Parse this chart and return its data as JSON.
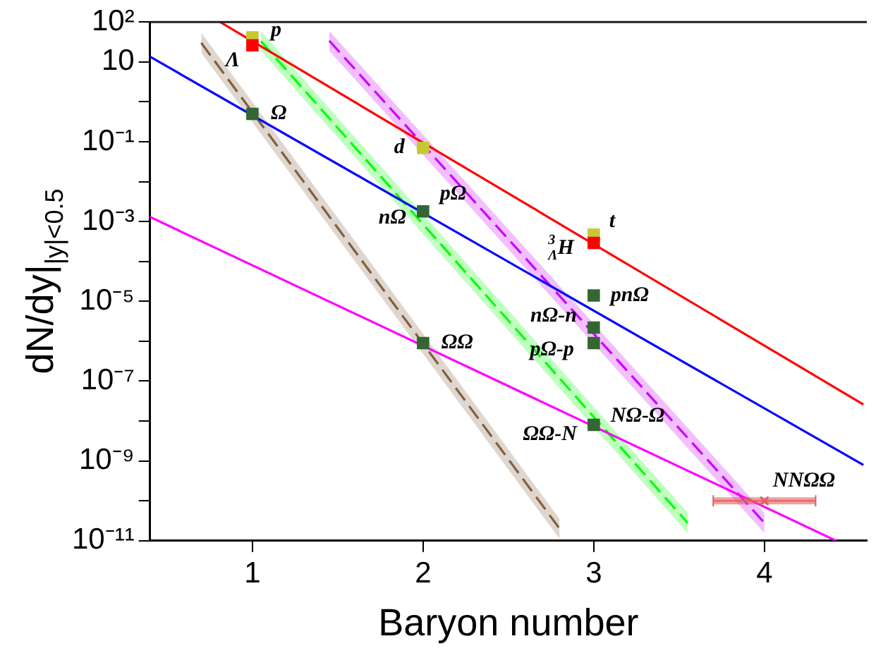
{
  "chart_data": {
    "type": "scatter",
    "xlabel": "Baryon number",
    "ylabel": "dN/dy|$_{|y|<0.5}$",
    "log": "y",
    "grid": false,
    "legend": false,
    "marker": "square",
    "xlim": [
      0.4,
      4.6
    ],
    "xticks": [
      1,
      2,
      3,
      4
    ],
    "ylim": [
      1e-11,
      100
    ],
    "yticks": [
      {
        "value": 100,
        "label": "10²"
      },
      {
        "value": 10,
        "label": "10"
      },
      {
        "value": 1,
        "label": null
      },
      {
        "value": 0.1,
        "label": "10⁻¹"
      },
      {
        "value": 0.01,
        "label": null
      },
      {
        "value": 0.001,
        "label": "10⁻³"
      },
      {
        "value": 0.0001,
        "label": null
      },
      {
        "value": 1e-05,
        "label": "10⁻⁵"
      },
      {
        "value": 1e-06,
        "label": null
      },
      {
        "value": 1e-07,
        "label": "10⁻⁷"
      },
      {
        "value": 1e-08,
        "label": null
      },
      {
        "value": 1e-09,
        "label": "10⁻⁹"
      },
      {
        "value": 1e-10,
        "label": null
      },
      {
        "value": 1e-11,
        "label": "10⁻¹¹"
      }
    ],
    "series": [
      {
        "type": "line",
        "color": "#ff0000",
        "line_style": "solid",
        "marker": "none",
        "x": [
          0.81,
          4.58
        ],
        "values": [
          100,
          2.6e-08
        ]
      },
      {
        "type": "line",
        "color": "#0000ff",
        "line_style": "solid",
        "marker": "none",
        "x": [
          0.4,
          4.58
        ],
        "values": [
          13.5,
          7.9e-10
        ]
      },
      {
        "type": "line",
        "color": "#ff00ff",
        "line_style": "solid",
        "marker": "none",
        "x": [
          0.4,
          4.42
        ],
        "values": [
          0.0013,
          1e-11
        ]
      },
      {
        "type": "line",
        "color": "#806040",
        "line_style": "dashed",
        "marker": "none",
        "x": [
          0.7,
          2.8
        ],
        "values": [
          30,
          2e-11
        ],
        "lower": [
          17,
          1.1e-11
        ],
        "upper": [
          54,
          3.5e-11
        ]
      },
      {
        "type": "line",
        "color": "#00ff00",
        "line_style": "dashed",
        "marker": "none",
        "x": [
          1.05,
          3.55
        ],
        "values": [
          33,
          2.8e-11
        ],
        "lower": [
          19,
          1.55e-11
        ],
        "upper": [
          59,
          5e-11
        ]
      },
      {
        "type": "line",
        "color": "#cc00ff",
        "line_style": "dashed",
        "marker": "none",
        "x": [
          1.45,
          4.0
        ],
        "values": [
          34,
          2.8e-11
        ],
        "lower": [
          19,
          1.55e-11
        ],
        "upper": [
          60,
          5e-11
        ]
      },
      {
        "color": "#c8c832",
        "x": [
          1,
          2,
          3
        ],
        "values": [
          41,
          0.07,
          0.00047
        ]
      },
      {
        "color": "#ff0000",
        "x": [
          1,
          3
        ],
        "values": [
          26,
          0.00029
        ]
      },
      {
        "color": "#336633",
        "x": [
          1,
          2,
          2,
          3,
          3,
          3,
          3
        ],
        "values": [
          0.5,
          0.0018,
          9e-07,
          1.4e-05,
          2.2e-06,
          9e-07,
          8e-09
        ]
      },
      {
        "color": "#e06060",
        "marker": "cross",
        "x": [
          4
        ],
        "values": [
          1e-10
        ],
        "xerrors": [
          0.3
        ]
      }
    ],
    "annotations": [
      {
        "text": "p",
        "x": 1,
        "y": 41
      },
      {
        "text": "Λ",
        "x": 1,
        "y": 26
      },
      {
        "text": "Ω",
        "x": 1,
        "y": 0.5
      },
      {
        "text": "d",
        "x": 2,
        "y": 0.07
      },
      {
        "text": "pΩ",
        "x": 2,
        "y": 0.0018
      },
      {
        "text": "nΩ",
        "x": 2,
        "y": 0.0018
      },
      {
        "text": "ΩΩ",
        "x": 2,
        "y": 9e-07
      },
      {
        "text": "t",
        "x": 3,
        "y": 0.00047
      },
      {
        "text": "$^{3}$$_{Λ}$H",
        "x": 3,
        "y": 0.00029
      },
      {
        "text": "pnΩ",
        "x": 3,
        "y": 1.4e-05
      },
      {
        "text": "nΩ-n",
        "x": 3,
        "y": 2.2e-06
      },
      {
        "text": "pΩ-p",
        "x": 3,
        "y": 9e-07
      },
      {
        "text": "NΩ-Ω",
        "x": 3,
        "y": 8e-09
      },
      {
        "text": "ΩΩ-N",
        "x": 3,
        "y": 8e-09
      },
      {
        "text": "NNΩΩ",
        "x": 4,
        "y": 1e-10
      }
    ]
  }
}
